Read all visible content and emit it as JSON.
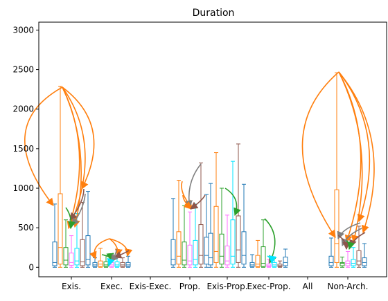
{
  "chart_data": {
    "type": "box",
    "title": "Duration",
    "xlabel": "",
    "ylabel": "",
    "ylim": [
      -120,
      3100
    ],
    "yticks": [
      0,
      500,
      1000,
      1500,
      2000,
      2500,
      3000
    ],
    "categories": [
      "Exis.",
      "Exec.",
      "Exis-Exec.",
      "Prop.",
      "Exis-Prop.",
      "Exec-Prop.",
      "All",
      "Non-Arch."
    ],
    "grid": false,
    "legend": "none",
    "box_colors": [
      "#1f77b4",
      "#ff7f0e",
      "#2ca02c",
      "#ff6fff",
      "#00e5ff",
      "#8c564b"
    ],
    "arrow_colors": {
      "orange": "#ff7f0e",
      "gray": "#7f7f7f",
      "green": "#2ca02c",
      "brown": "#8c564b",
      "cyan": "#00e5ff"
    },
    "series": [
      {
        "category": "Exis.",
        "boxes": [
          {
            "min": 0,
            "q1": 20,
            "median": 60,
            "q3": 320,
            "max": 800
          },
          {
            "min": 0,
            "q1": 40,
            "median": 250,
            "q3": 930,
            "max": 2290
          },
          {
            "min": 0,
            "q1": 30,
            "median": 90,
            "q3": 250,
            "max": 600
          },
          {
            "min": 0,
            "q1": 25,
            "median": 60,
            "q3": 180,
            "max": 400
          },
          {
            "min": 0,
            "q1": 30,
            "median": 80,
            "q3": 240,
            "max": 680
          },
          {
            "min": 0,
            "q1": 20,
            "median": 70,
            "q3": 350,
            "max": 820
          },
          {
            "min": 0,
            "q1": 30,
            "median": 100,
            "q3": 400,
            "max": 960
          }
        ]
      },
      {
        "category": "Exec.",
        "boxes": [
          {
            "min": 0,
            "q1": 10,
            "median": 30,
            "q3": 60,
            "max": 120
          },
          {
            "min": 0,
            "q1": 10,
            "median": 40,
            "q3": 80,
            "max": 240
          },
          {
            "min": 0,
            "q1": 10,
            "median": 30,
            "q3": 70,
            "max": 150
          },
          {
            "min": 0,
            "q1": 10,
            "median": 30,
            "q3": 60,
            "max": 120
          },
          {
            "min": 0,
            "q1": 10,
            "median": 30,
            "q3": 70,
            "max": 140
          },
          {
            "min": 0,
            "q1": 10,
            "median": 30,
            "q3": 60,
            "max": 120
          },
          {
            "min": 0,
            "q1": 10,
            "median": 30,
            "q3": 60,
            "max": 140
          }
        ]
      },
      {
        "category": "Exis-Exec.",
        "boxes": []
      },
      {
        "category": "Prop.",
        "boxes": [
          {
            "min": 0,
            "q1": 30,
            "median": 100,
            "q3": 350,
            "max": 870
          },
          {
            "min": 0,
            "q1": 40,
            "median": 140,
            "q3": 450,
            "max": 1100
          },
          {
            "min": 0,
            "q1": 30,
            "median": 90,
            "q3": 320,
            "max": 780
          },
          {
            "min": 0,
            "q1": 30,
            "median": 80,
            "q3": 280,
            "max": 700
          },
          {
            "min": 0,
            "q1": 30,
            "median": 100,
            "q3": 340,
            "max": 800
          },
          {
            "min": 0,
            "q1": 40,
            "median": 150,
            "q3": 540,
            "max": 1320
          },
          {
            "min": 0,
            "q1": 40,
            "median": 150,
            "q3": 380,
            "max": 920
          }
        ]
      },
      {
        "category": "Exis-Prop.",
        "boxes": [
          {
            "min": 0,
            "q1": 30,
            "median": 120,
            "q3": 430,
            "max": 1060
          },
          {
            "min": 0,
            "q1": 60,
            "median": 200,
            "q3": 770,
            "max": 1450
          },
          {
            "min": 0,
            "q1": 40,
            "median": 140,
            "q3": 420,
            "max": 1000
          },
          {
            "min": 0,
            "q1": 30,
            "median": 80,
            "q3": 270,
            "max": 660
          },
          {
            "min": 0,
            "q1": 40,
            "median": 140,
            "q3": 600,
            "max": 1340
          },
          {
            "min": 0,
            "q1": 60,
            "median": 220,
            "q3": 650,
            "max": 1560
          },
          {
            "min": 0,
            "q1": 40,
            "median": 150,
            "q3": 450,
            "max": 1050
          }
        ]
      },
      {
        "category": "Exec-Prop.",
        "boxes": [
          {
            "min": 0,
            "q1": 10,
            "median": 30,
            "q3": 60,
            "max": 160
          },
          {
            "min": 0,
            "q1": 10,
            "median": 40,
            "q3": 150,
            "max": 340
          },
          {
            "min": 0,
            "q1": 10,
            "median": 50,
            "q3": 260,
            "max": 600
          },
          {
            "min": 0,
            "q1": 10,
            "median": 20,
            "q3": 40,
            "max": 100
          },
          {
            "min": 0,
            "q1": 10,
            "median": 30,
            "q3": 60,
            "max": 120
          },
          {
            "min": 0,
            "q1": 10,
            "median": 20,
            "q3": 40,
            "max": 80
          },
          {
            "min": 0,
            "q1": 20,
            "median": 60,
            "q3": 130,
            "max": 230
          }
        ]
      },
      {
        "category": "All",
        "boxes": []
      },
      {
        "category": "Non-Arch.",
        "boxes": [
          {
            "min": 0,
            "q1": 20,
            "median": 60,
            "q3": 140,
            "max": 370
          },
          {
            "min": 0,
            "q1": 60,
            "median": 300,
            "q3": 980,
            "max": 2460
          },
          {
            "min": 0,
            "q1": 20,
            "median": 50,
            "q3": 60,
            "max": 130
          },
          {
            "min": 0,
            "q1": 20,
            "median": 50,
            "q3": 80,
            "max": 200
          },
          {
            "min": 0,
            "q1": 20,
            "median": 50,
            "q3": 100,
            "max": 250
          },
          {
            "min": 0,
            "q1": 30,
            "median": 80,
            "q3": 210,
            "max": 520
          },
          {
            "min": 0,
            "q1": 20,
            "median": 60,
            "q3": 120,
            "max": 300
          }
        ]
      }
    ]
  }
}
